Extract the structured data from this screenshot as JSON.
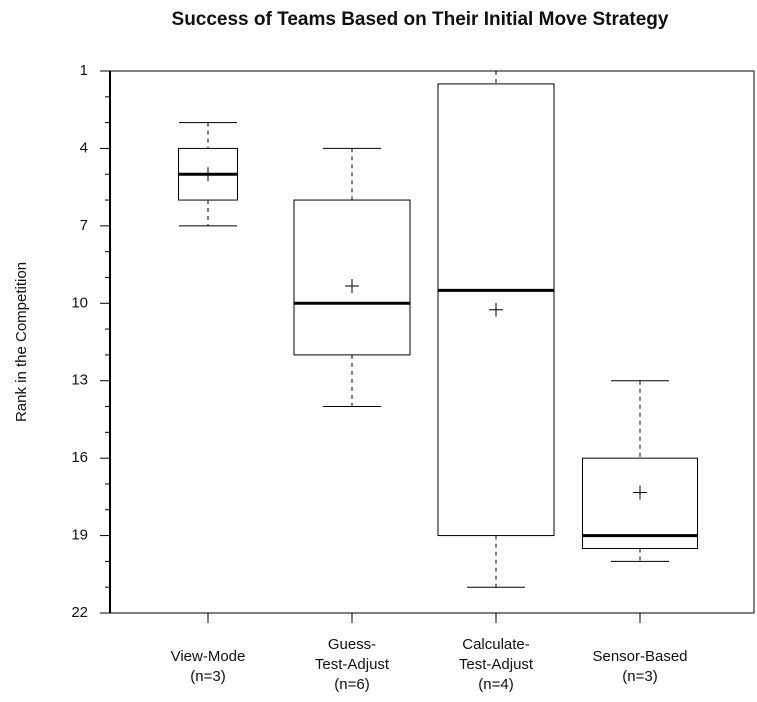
{
  "chart_data": {
    "type": "box",
    "title": "Success of Teams Based on Their Initial Move Strategy",
    "ylabel": "Rank in the Competition",
    "categories": [
      [
        "View-Mode",
        "(n=3)"
      ],
      [
        "Guess-",
        "Test-Adjust",
        "(n=6)"
      ],
      [
        "Calculate-",
        "Test-Adjust",
        "(n=4)"
      ],
      [
        "Sensor-Based",
        "(n=3)"
      ]
    ],
    "boxes": [
      {
        "min": 3,
        "q1": 4,
        "median": 5,
        "q3": 6,
        "max": 7,
        "mean": 5
      },
      {
        "min": 4,
        "q1": 6,
        "median": 10,
        "q3": 12,
        "max": 14,
        "mean": 9.33
      },
      {
        "min": 1,
        "q1": 1.5,
        "median": 9.5,
        "q3": 19,
        "max": 21,
        "mean": 10.25
      },
      {
        "min": 13,
        "q1": 16,
        "median": 19,
        "q3": 19.5,
        "max": 20,
        "mean": 17.33
      }
    ],
    "color": "#000000",
    "ylim": [
      22,
      1
    ],
    "yticks": [
      1,
      4,
      7,
      10,
      13,
      16,
      19,
      22
    ],
    "minor_yticks": [
      2,
      3,
      5,
      6,
      8,
      9,
      11,
      12,
      14,
      15,
      17,
      18,
      20,
      21
    ]
  }
}
